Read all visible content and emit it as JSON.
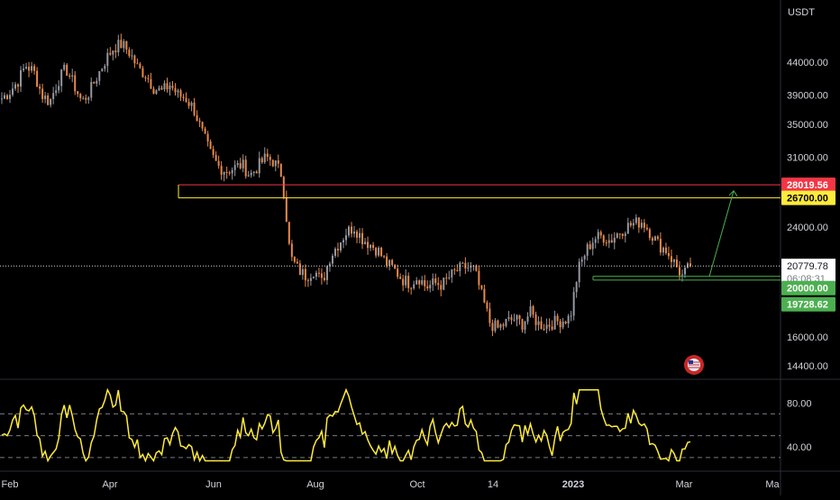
{
  "chart_data": [
    {
      "type": "candlestick",
      "currency": "USDT",
      "y_scale": "log",
      "ylim": [
        13600,
        57000
      ],
      "y_ticks": [
        "44000.00",
        "39000.00",
        "35000.00",
        "31000.00",
        "24000.00",
        "16000.00",
        "14400.00"
      ],
      "x_ticks": [
        "Feb",
        "Apr",
        "Jun",
        "Aug",
        "Oct",
        "14",
        "2023",
        "Mar",
        "Ma"
      ],
      "grid": false,
      "approx_daily_closes": [
        38500,
        39500,
        41000,
        43500,
        42500,
        39000,
        38000,
        41000,
        43000,
        40500,
        38000,
        39500,
        42000,
        44500,
        46500,
        47000,
        45500,
        43000,
        42000,
        40000,
        39500,
        40500,
        39000,
        38500,
        37000,
        34000,
        31500,
        30000,
        29500,
        29800,
        30200,
        29000,
        30000,
        31000,
        30500,
        29000,
        21500,
        20500,
        20000,
        20500,
        19500,
        21500,
        22500,
        23500,
        24000,
        23000,
        22500,
        22000,
        21000,
        20500,
        19800,
        19500,
        20000,
        19200,
        19500,
        19400,
        20000,
        20500,
        20700,
        20500,
        18500,
        16800,
        16500,
        16900,
        17100,
        16800,
        17500,
        16800,
        16700,
        16900,
        17000,
        17200,
        20500,
        22000,
        23000,
        23200,
        22800,
        23500,
        24000,
        24300,
        24500,
        23500,
        22500,
        22000,
        21000,
        20000,
        20779.78
      ],
      "last_price": "20779.78",
      "countdown": "06:08:31",
      "levels": [
        {
          "price": "28019.56",
          "color": "#f23645",
          "label_color": "#ffffff"
        },
        {
          "price": "26700.00",
          "color": "#ffeb3b",
          "label_color": "#000000"
        },
        {
          "price": "20000.00",
          "color": "#4caf50",
          "label_color": "#ffffff"
        },
        {
          "price": "19728.62",
          "color": "#4caf50",
          "label_color": "#ffffff"
        }
      ],
      "projection_arrow": {
        "from_price": 19728.62,
        "to_price": 27400,
        "color": "#4caf50"
      }
    },
    {
      "type": "line",
      "indicator": "oscillator",
      "ylim": [
        20,
        100
      ],
      "y_ticks": [
        "80.00",
        "40.00"
      ],
      "dashed_levels": [
        70,
        50,
        30
      ],
      "color": "#ffeb3b"
    }
  ],
  "colors": {
    "background": "#000000",
    "candle_up": "#9598a1",
    "candle_down": "#e6894a",
    "text": "#d1d4dc",
    "separator": "#2a2e39"
  },
  "icons": {
    "flag": "us-flag-icon"
  }
}
